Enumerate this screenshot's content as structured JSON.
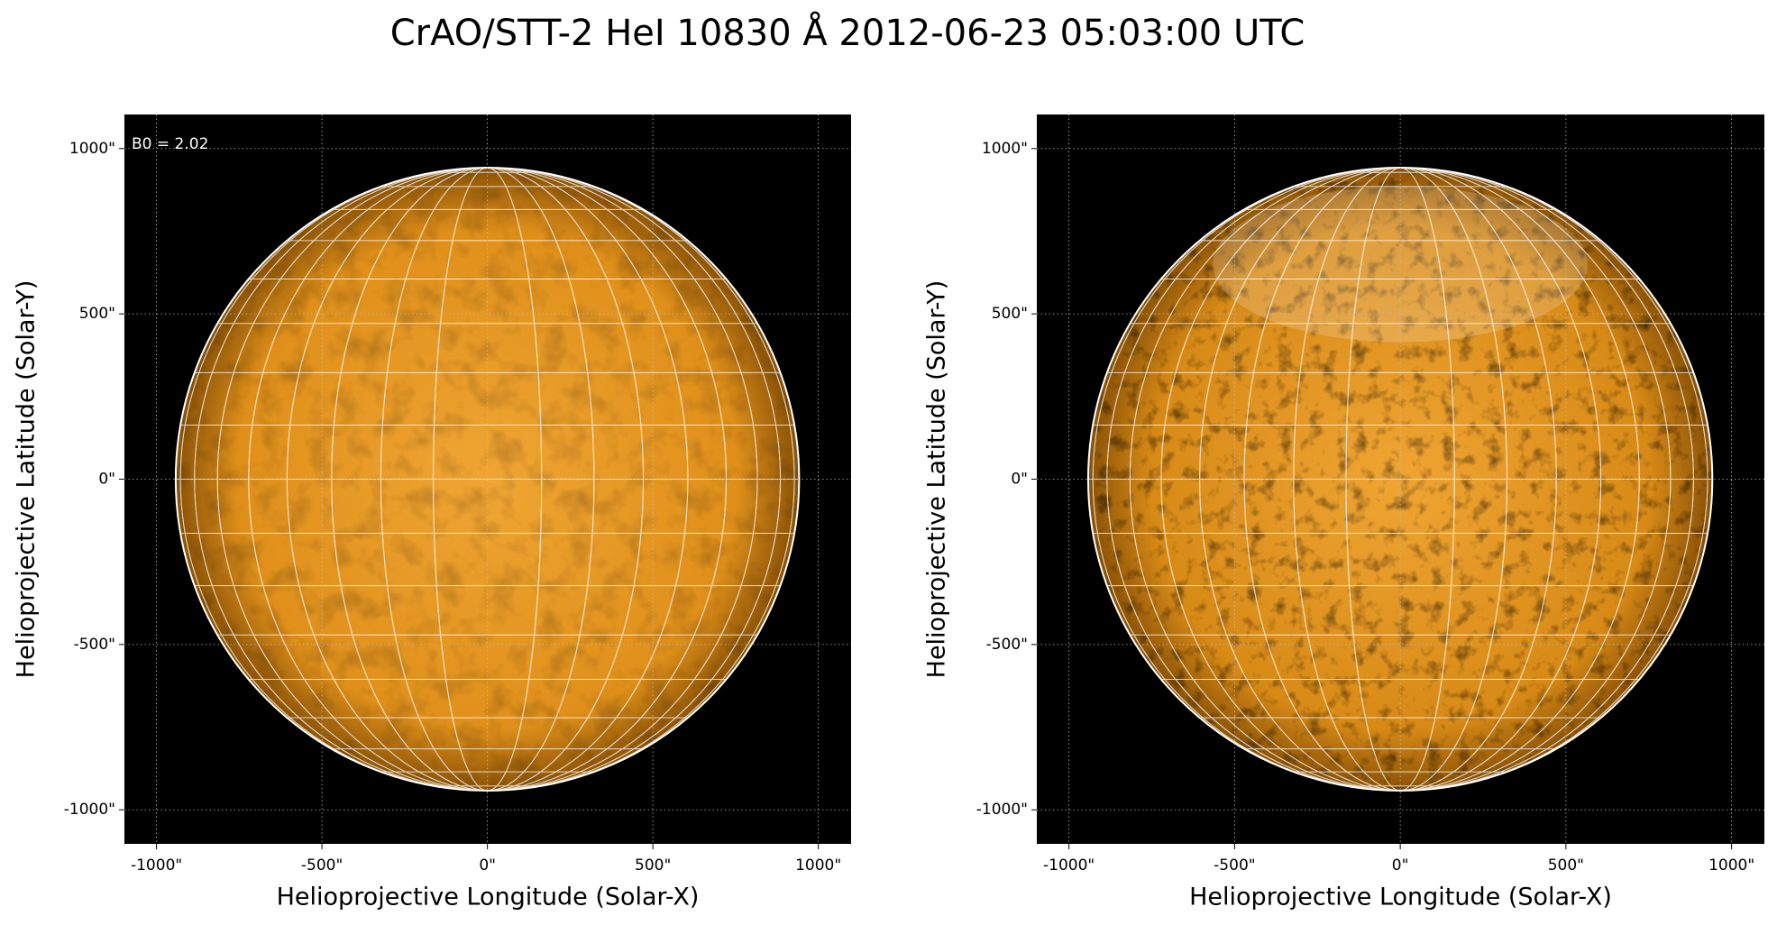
{
  "title": "CrAO/STT-2 HeI 10830 Å 2012-06-23 05:03:00 UTC",
  "chart_data": [
    {
      "type": "image",
      "annotation": "B0 = 2.02",
      "color": "#e0901a",
      "grid": true,
      "xlabel": "Helioprojective Longitude (Solar-X)",
      "ylabel": "Helioprojective Latitude (Solar-Y)",
      "xlim": [
        -1097,
        1099
      ],
      "ylim": [
        -1103,
        1103
      ],
      "xticks": [
        {
          "value": -1000,
          "label": "-1000\""
        },
        {
          "value": -500,
          "label": "-500\""
        },
        {
          "value": 0,
          "label": "0\""
        },
        {
          "value": 500,
          "label": "500\""
        },
        {
          "value": 1000,
          "label": "1000\""
        }
      ],
      "yticks": [
        {
          "value": -1000,
          "label": "-1000\""
        },
        {
          "value": -500,
          "label": "-500\""
        },
        {
          "value": 0,
          "label": "0\""
        },
        {
          "value": 500,
          "label": "500\""
        },
        {
          "value": 1000,
          "label": "1000\""
        }
      ]
    },
    {
      "type": "image",
      "color": "#d88a16",
      "grid": true,
      "xlabel": "Helioprojective Longitude (Solar-X)",
      "ylabel": "Helioprojective Latitude (Solar-Y)",
      "xlim": [
        -1097,
        1099
      ],
      "ylim": [
        -1103,
        1103
      ],
      "xticks": [
        {
          "value": -1000,
          "label": "-1000\""
        },
        {
          "value": -500,
          "label": "-500\""
        },
        {
          "value": 0,
          "label": "0\""
        },
        {
          "value": 500,
          "label": "500\""
        },
        {
          "value": 1000,
          "label": "1000\""
        }
      ],
      "yticks": [
        {
          "value": -1000,
          "label": "-1000\""
        },
        {
          "value": -500,
          "label": "-500\""
        },
        {
          "value": 0,
          "label": "0\""
        },
        {
          "value": 500,
          "label": "500\""
        },
        {
          "value": 1000,
          "label": "1000\""
        }
      ]
    }
  ]
}
